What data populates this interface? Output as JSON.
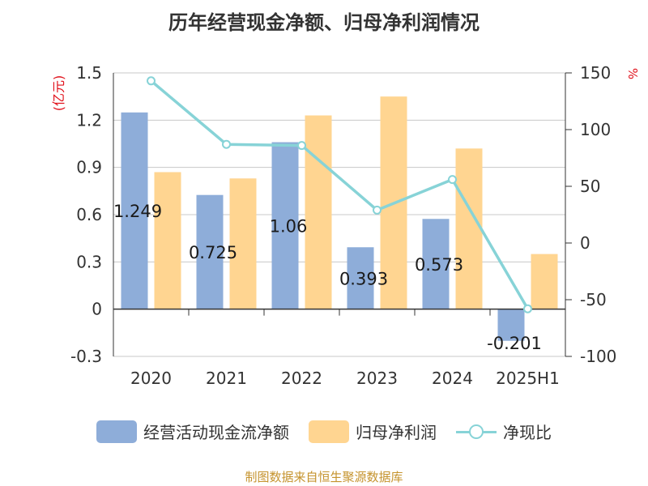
{
  "chart_data": {
    "type": "bar",
    "title": "历年经营现金净额、归母净利润情况",
    "categories": [
      "2020",
      "2021",
      "2022",
      "2023",
      "2024",
      "2025H1"
    ],
    "series": [
      {
        "name": "经营活动现金流净额",
        "kind": "bar",
        "axis": "left",
        "color": "#8EADD9",
        "values": [
          1.249,
          0.725,
          1.06,
          0.393,
          0.573,
          -0.201
        ],
        "labels": [
          "1.249",
          "0.725",
          "1.06",
          "0.393",
          "0.573",
          "-0.201"
        ]
      },
      {
        "name": "归母净利润",
        "kind": "bar",
        "axis": "left",
        "color": "#FFD591",
        "values": [
          0.87,
          0.83,
          1.23,
          1.35,
          1.02,
          0.35
        ]
      },
      {
        "name": "净现比",
        "kind": "line",
        "axis": "right",
        "color": "#87D3D7",
        "values": [
          143,
          87,
          86,
          29,
          56,
          -58
        ]
      }
    ],
    "y_left": {
      "label": "(亿元)",
      "ylim": [
        -0.3,
        1.5
      ],
      "ticks": [
        "-0.3",
        "0",
        "0.3",
        "0.6",
        "0.9",
        "1.2",
        "1.5"
      ]
    },
    "y_right": {
      "label": "%",
      "ylim": [
        -100,
        150
      ],
      "ticks": [
        "-100",
        "-50",
        "0",
        "50",
        "100",
        "150"
      ]
    },
    "grid": true,
    "legend_position": "bottom"
  },
  "source_note": "制图数据来自恒生聚源数据库"
}
